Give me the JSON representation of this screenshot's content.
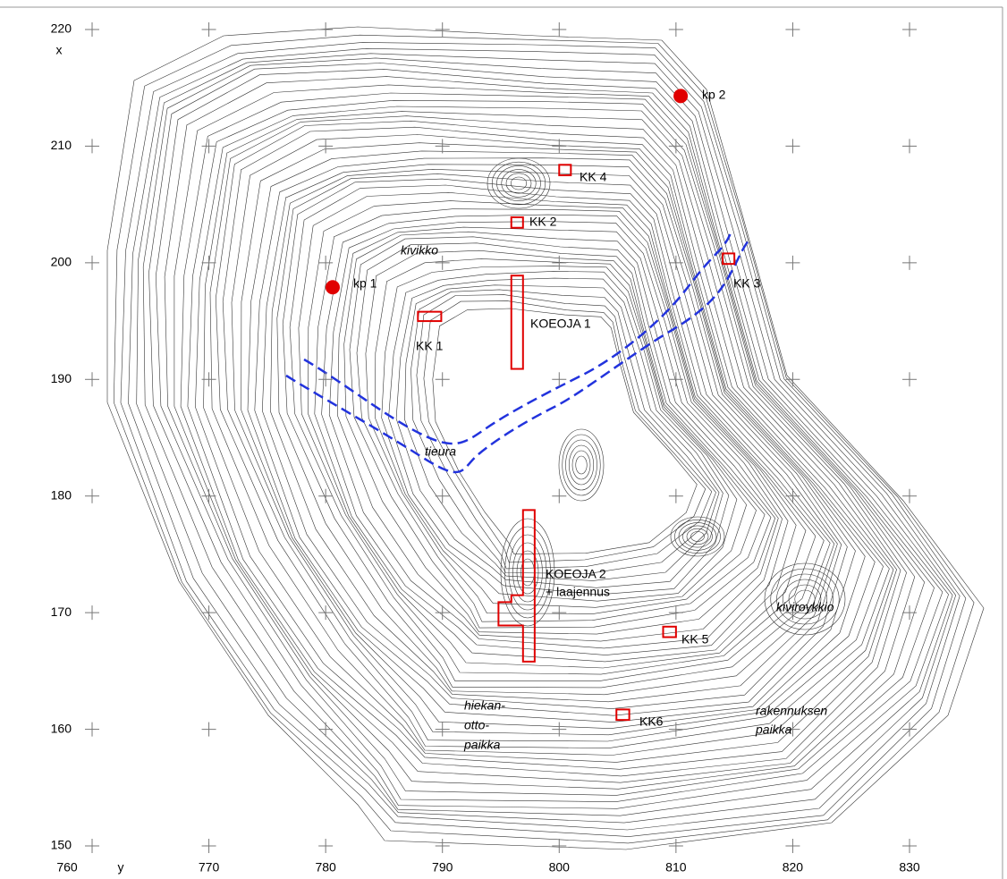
{
  "axes": {
    "x_label": "y",
    "y_label": "x",
    "xlim": [
      760,
      830
    ],
    "ylim": [
      150,
      220
    ],
    "xticks": [
      760,
      770,
      780,
      790,
      800,
      810,
      820,
      830
    ],
    "yticks": [
      150,
      160,
      170,
      180,
      190,
      200,
      210,
      220
    ]
  },
  "points": [
    {
      "label": "kp 1",
      "x": 780.6,
      "y": 197.9
    },
    {
      "label": "kp 2",
      "x": 810.4,
      "y": 214.3
    }
  ],
  "areas": [
    {
      "label": "KK 4",
      "x": [
        800.0,
        801.0
      ],
      "y": [
        207.5,
        208.4
      ]
    },
    {
      "label": "KK 2",
      "x": [
        795.9,
        796.9
      ],
      "y": [
        203.0,
        203.9
      ]
    },
    {
      "label": "KK 3",
      "x": [
        814.0,
        815.0
      ],
      "y": [
        199.9,
        200.8
      ]
    },
    {
      "label": "KK 1",
      "x": [
        787.9,
        789.9
      ],
      "y": [
        195.0,
        195.8
      ]
    },
    {
      "label": "KOEOJA 1",
      "x": [
        795.9,
        796.9
      ],
      "y": [
        190.9,
        198.9
      ]
    },
    {
      "label": "KK 5",
      "x": [
        808.9,
        810.0
      ],
      "y": [
        167.9,
        168.8
      ]
    },
    {
      "label": "KK6",
      "x": [
        804.9,
        806.0
      ],
      "y": [
        160.8,
        161.7
      ]
    }
  ],
  "trench2": {
    "label": [
      "KOEOJA 2",
      "+ laajennus"
    ],
    "vertices": [
      [
        796.9,
        178.8
      ],
      [
        797.9,
        178.8
      ],
      [
        797.9,
        165.8
      ],
      [
        796.9,
        165.8
      ],
      [
        796.9,
        168.9
      ],
      [
        794.8,
        168.9
      ],
      [
        794.8,
        170.9
      ],
      [
        795.9,
        170.9
      ],
      [
        795.9,
        171.5
      ],
      [
        796.9,
        171.5
      ]
    ]
  },
  "annotations": [
    "kivikko",
    "tieura",
    [
      "hiekan-",
      "otto-",
      "paikka"
    ],
    "kiviroykkio",
    [
      "rakennuksen",
      "paikka"
    ]
  ]
}
